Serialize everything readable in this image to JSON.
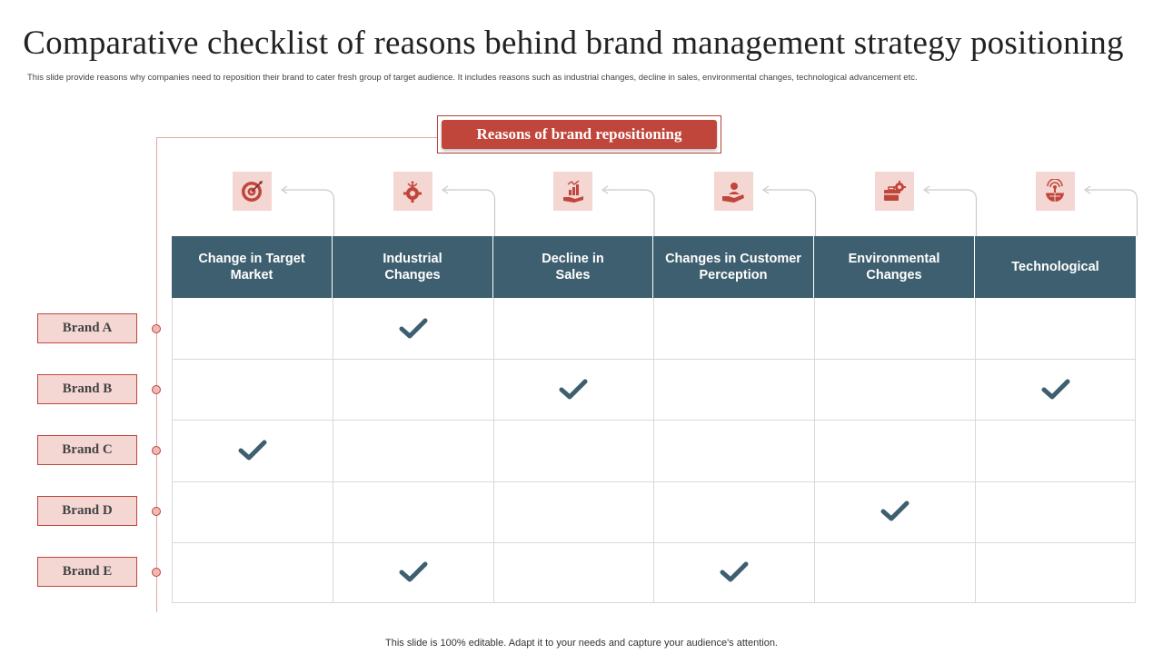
{
  "title": "Comparative checklist of reasons behind brand management strategy positioning",
  "subtitle": "This slide provide reasons why companies need to reposition their brand to cater fresh group of target audience. It includes reasons such as industrial changes, decline in  sales, environmental changes, technological advancement etc.",
  "banner": "Reasons of brand repositioning",
  "colors": {
    "accent_red": "#c0463b",
    "header_teal": "#3e5f6f",
    "icon_bg": "#f4d6d3",
    "check": "#3e5f6f"
  },
  "columns": [
    {
      "label": "Change in Target\nMarket",
      "icon": "target-icon"
    },
    {
      "label": "Industrial\nChanges",
      "icon": "gear-factory-icon"
    },
    {
      "label": "Decline in\nSales",
      "icon": "sales-hand-icon"
    },
    {
      "label": "Changes in Customer\nPerception",
      "icon": "customer-hand-icon"
    },
    {
      "label": "Environmental\nChanges",
      "icon": "briefcase-gear-icon"
    },
    {
      "label": "Technological",
      "icon": "globe-signal-icon"
    }
  ],
  "rows": [
    {
      "brand": "Brand A",
      "checks": [
        false,
        true,
        false,
        false,
        false,
        false
      ]
    },
    {
      "brand": "Brand B",
      "checks": [
        false,
        false,
        true,
        false,
        false,
        true
      ]
    },
    {
      "brand": "Brand C",
      "checks": [
        true,
        false,
        false,
        false,
        false,
        false
      ]
    },
    {
      "brand": "Brand D",
      "checks": [
        false,
        false,
        false,
        false,
        true,
        false
      ]
    },
    {
      "brand": "Brand E",
      "checks": [
        false,
        true,
        false,
        true,
        false,
        false
      ]
    }
  ],
  "footer": "This slide is 100% editable. Adapt it to your needs and capture your audience's attention."
}
